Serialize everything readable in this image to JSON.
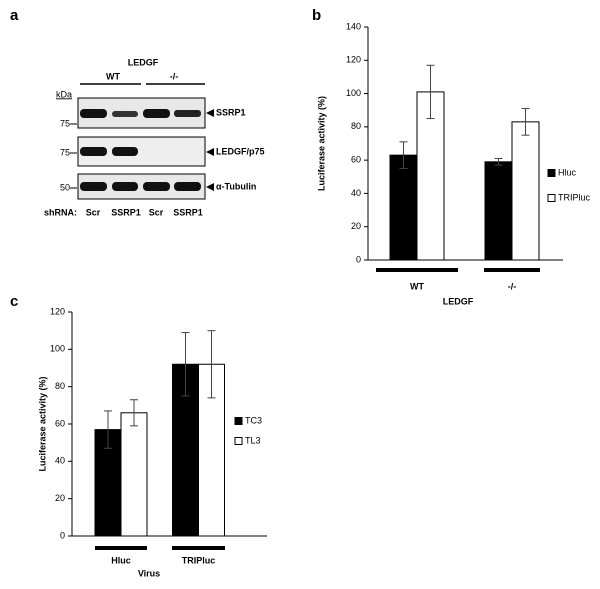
{
  "panels": [
    "a",
    "b",
    "c"
  ],
  "blot": {
    "title": "LEDGF",
    "groups": [
      "WT",
      "-/-"
    ],
    "kda": "kDa",
    "rows": [
      {
        "marker": "75",
        "label": "SSRP1"
      },
      {
        "marker": "75",
        "label": "LEDGF/p75"
      },
      {
        "marker": "50",
        "label": "α-Tubulin"
      }
    ],
    "shrna_label": "shRNA:",
    "lanes": [
      "Scr",
      "SSRP1",
      "Scr",
      "SSRP1"
    ]
  },
  "chart_data": [
    {
      "type": "bar",
      "ylabel": "Luciferase activity (%)",
      "xlabel": "LEDGF",
      "categories": [
        "WT",
        "-/-"
      ],
      "series": [
        {
          "name": "Hluc",
          "color": "#000000",
          "values": [
            63,
            59
          ],
          "errors": [
            8,
            2
          ]
        },
        {
          "name": "TRIPluc",
          "color": "#ffffff",
          "values": [
            101,
            83
          ],
          "errors": [
            16,
            8
          ]
        }
      ],
      "ylim": [
        0,
        140
      ],
      "yticks": [
        0,
        20,
        40,
        60,
        80,
        100,
        120,
        140
      ],
      "grid": false
    },
    {
      "type": "bar",
      "ylabel": "Luciferase activity (%)",
      "xlabel": "Virus",
      "categories": [
        "Hluc",
        "TRIPluc"
      ],
      "series": [
        {
          "name": "TC3",
          "color": "#000000",
          "values": [
            57,
            92
          ],
          "errors": [
            10,
            17
          ]
        },
        {
          "name": "TL3",
          "color": "#ffffff",
          "values": [
            66,
            92
          ],
          "errors": [
            7,
            18
          ]
        }
      ],
      "ylim": [
        0,
        120
      ],
      "yticks": [
        0,
        20,
        40,
        60,
        80,
        100,
        120
      ],
      "grid": false
    }
  ]
}
